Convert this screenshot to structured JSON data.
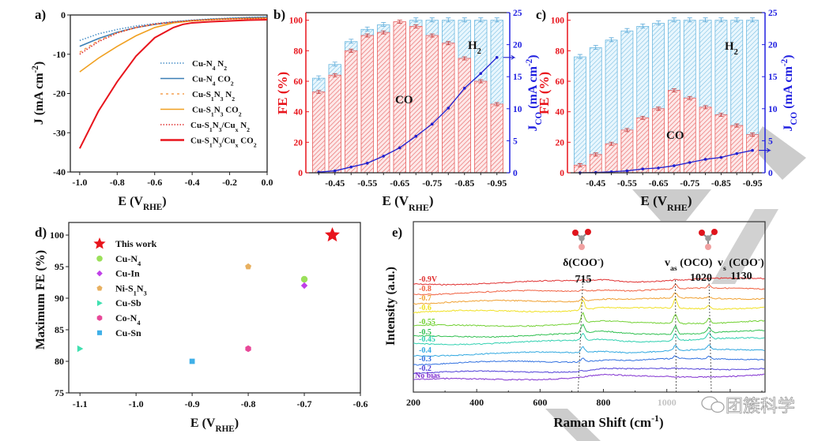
{
  "watermark": {
    "text": "团簇科学"
  },
  "chart_data": [
    {
      "panel": "a)",
      "type": "line",
      "xlabel": "E (V",
      "xlabel_sub": "RHE",
      "xlabel_end": ")",
      "ylabel": "J (mA cm",
      "ylabel_sup": "-2",
      "ylabel_end": ")",
      "xlim": [
        -1.05,
        0.0
      ],
      "ylim": [
        -40,
        0
      ],
      "xticks": [
        "-1.0",
        "-0.8",
        "-0.6",
        "-0.4",
        "-0.2",
        "0.0"
      ],
      "xtick_values": [
        -1.0,
        -0.8,
        -0.6,
        -0.4,
        -0.2,
        0.0
      ],
      "yticks": [
        "0",
        "-10",
        "-20",
        "-30",
        "-40"
      ],
      "ytick_values": [
        0,
        -10,
        -20,
        -30,
        -40
      ],
      "legend_position": "center-right",
      "series": [
        {
          "name": "Cu-N4 N2",
          "label": "Cu-N₄ N₂",
          "color": "#4a90c8",
          "dash": "dot",
          "x": [
            -1.0,
            -0.9,
            -0.8,
            -0.7,
            -0.6,
            -0.5,
            -0.4,
            -0.3,
            -0.2,
            -0.1,
            0.0
          ],
          "y": [
            -6.5,
            -4.8,
            -3.7,
            -2.8,
            -2.2,
            -1.7,
            -1.3,
            -1.0,
            -0.8,
            -0.6,
            -0.5
          ]
        },
        {
          "name": "Cu-N4 CO2",
          "label": "Cu-N₄ CO₂",
          "color": "#3b7fb5",
          "dash": "solid",
          "x": [
            -1.0,
            -0.9,
            -0.8,
            -0.7,
            -0.6,
            -0.5,
            -0.4,
            -0.3,
            -0.2,
            -0.1,
            0.0
          ],
          "y": [
            -8.0,
            -6.0,
            -4.4,
            -3.2,
            -2.4,
            -1.8,
            -1.4,
            -1.1,
            -0.9,
            -0.7,
            -0.6
          ]
        },
        {
          "name": "Cu-S1N3 N2",
          "label": "Cu-S₁N₃ N₂",
          "color": "#f5a050",
          "dash": "dash",
          "x": [
            -1.0,
            -0.9,
            -0.8,
            -0.7,
            -0.6,
            -0.5,
            -0.4,
            -0.3,
            -0.2,
            -0.1,
            0.0
          ],
          "y": [
            -9.5,
            -6.5,
            -4.5,
            -3.2,
            -2.4,
            -1.9,
            -1.5,
            -1.2,
            -1.0,
            -0.9,
            -0.8
          ]
        },
        {
          "name": "Cu-S1N3 CO2",
          "label": "Cu-S₁N₃ CO₂",
          "color": "#f0a020",
          "dash": "solid",
          "x": [
            -1.0,
            -0.9,
            -0.8,
            -0.7,
            -0.6,
            -0.5,
            -0.4,
            -0.3,
            -0.2,
            -0.1,
            0.0
          ],
          "y": [
            -14.5,
            -11.0,
            -8.0,
            -5.3,
            -3.2,
            -2.0,
            -1.5,
            -1.2,
            -1.0,
            -0.9,
            -0.8
          ]
        },
        {
          "name": "Cu-S1N3/Cux N2",
          "label": "Cu-S₁N₃/Cuₓ N₂",
          "color": "#e03030",
          "dash": "dot",
          "x": [
            -1.0,
            -0.9,
            -0.8,
            -0.7,
            -0.6,
            -0.5,
            -0.4,
            -0.3,
            -0.2,
            -0.1,
            0.0
          ],
          "y": [
            -10.0,
            -6.8,
            -4.6,
            -3.2,
            -2.3,
            -1.8,
            -1.4,
            -1.2,
            -1.0,
            -0.9,
            -0.8
          ]
        },
        {
          "name": "Cu-S1N3/Cux CO2",
          "label": "Cu-S₁N₃/Cuₓ CO₂",
          "color": "#e8141c",
          "dash": "solid",
          "x": [
            -1.0,
            -0.9,
            -0.8,
            -0.7,
            -0.6,
            -0.5,
            -0.45,
            -0.4,
            -0.3,
            -0.2,
            -0.1,
            0.0
          ],
          "y": [
            -34.0,
            -24.5,
            -17.0,
            -10.5,
            -5.8,
            -3.2,
            -2.4,
            -2.0,
            -1.7,
            -1.5,
            -1.3,
            -1.2
          ]
        }
      ]
    },
    {
      "panel": "b)",
      "type": "bar",
      "categories": [
        -0.4,
        -0.45,
        -0.5,
        -0.55,
        -0.6,
        -0.65,
        -0.7,
        -0.75,
        -0.8,
        -0.85,
        -0.9,
        -0.95
      ],
      "xticks": [
        "-0.45",
        "-0.55",
        "-0.65",
        "-0.75",
        "-0.85",
        "-0.95"
      ],
      "xlabel": "E (V",
      "xlabel_sub": "RHE",
      "xlabel_end": ")",
      "ylabel": "FE (%)",
      "ylabel_right": "J",
      "ylabel_right_sub": "CO",
      "ylabel_right_rest": " (mA cm",
      "ylabel_right_sup": "-2",
      "ylabel_right_end": ")",
      "ylim": [
        0,
        105
      ],
      "ylim_right": [
        0,
        25
      ],
      "yticks": [
        "0",
        "20",
        "40",
        "60",
        "80",
        "100"
      ],
      "ytick_values": [
        0,
        20,
        40,
        60,
        80,
        100
      ],
      "yticks_right": [
        "0",
        "5",
        "10",
        "15",
        "20",
        "25"
      ],
      "ytick_right_values": [
        0,
        5,
        10,
        15,
        20,
        25
      ],
      "annotations": {
        "co": "CO",
        "h2": "H",
        "h2_sub": "2"
      },
      "series": [
        {
          "name": "CO",
          "color": "#f08080",
          "values": [
            53,
            64,
            80,
            90,
            92,
            99,
            96,
            90,
            85,
            75,
            60,
            45
          ]
        },
        {
          "name": "H2",
          "color": "#7ec8ea",
          "values": [
            9,
            7,
            6,
            4,
            5,
            0,
            4,
            10,
            15,
            25,
            40,
            55
          ]
        },
        {
          "name": "J_CO",
          "color": "#2020d0",
          "axis": "right",
          "values": [
            0.1,
            0.3,
            0.9,
            1.5,
            2.6,
            3.9,
            5.7,
            7.6,
            10.1,
            13.2,
            15.5,
            18.0
          ]
        }
      ]
    },
    {
      "panel": "c)",
      "type": "bar",
      "categories": [
        -0.4,
        -0.45,
        -0.5,
        -0.55,
        -0.6,
        -0.65,
        -0.7,
        -0.75,
        -0.8,
        -0.85,
        -0.9,
        -0.95
      ],
      "xticks": [
        "-0.45",
        "-0.55",
        "-0.65",
        "-0.75",
        "-0.85",
        "-0.95"
      ],
      "xlabel": "E (V",
      "xlabel_sub": "RHE",
      "xlabel_end": ")",
      "ylabel": "FE (%)",
      "ylabel_right": "J",
      "ylabel_right_sub": "CO",
      "ylabel_right_rest": " (mA cm",
      "ylabel_right_sup": "-2",
      "ylabel_right_end": ")",
      "ylim": [
        0,
        105
      ],
      "ylim_right": [
        0,
        25
      ],
      "yticks": [
        "0",
        "20",
        "40",
        "60",
        "80",
        "100"
      ],
      "ytick_values": [
        0,
        20,
        40,
        60,
        80,
        100
      ],
      "yticks_right": [
        "0",
        "5",
        "10",
        "15",
        "20",
        "25"
      ],
      "ytick_right_values": [
        0,
        5,
        10,
        15,
        20,
        25
      ],
      "annotations": {
        "co": "CO",
        "h2": "H",
        "h2_sub": "2"
      },
      "series": [
        {
          "name": "CO",
          "color": "#f08080",
          "values": [
            5,
            12,
            19,
            28,
            36,
            42,
            54,
            49,
            43,
            38,
            31,
            25
          ]
        },
        {
          "name": "H2",
          "color": "#7ec8ea",
          "values": [
            71,
            70,
            68,
            65,
            60,
            56,
            46,
            51,
            57,
            62,
            69,
            75
          ]
        },
        {
          "name": "J_CO",
          "color": "#2020d0",
          "axis": "right",
          "values": [
            0.0,
            0.05,
            0.15,
            0.3,
            0.6,
            0.75,
            1.1,
            1.6,
            2.1,
            2.4,
            3.0,
            3.5
          ]
        }
      ]
    },
    {
      "panel": "d)",
      "type": "scatter",
      "xlabel": "E (V",
      "xlabel_sub": "RHE",
      "xlabel_end": ")",
      "ylabel": "Maximum FE (%)",
      "xlim": [
        -1.12,
        -0.6
      ],
      "ylim": [
        75,
        102
      ],
      "xticks": [
        "-1.1",
        "-1.0",
        "-0.9",
        "-0.8",
        "-0.7",
        "-0.6"
      ],
      "xtick_values": [
        -1.1,
        -1.0,
        -0.9,
        -0.8,
        -0.7,
        -0.6
      ],
      "yticks": [
        "75",
        "80",
        "85",
        "90",
        "95",
        "100"
      ],
      "ytick_values": [
        75,
        80,
        85,
        90,
        95,
        100
      ],
      "legend_position": "top-left",
      "series": [
        {
          "name": "This work",
          "marker": "star",
          "color": "#e8141c",
          "x": -0.65,
          "y": 100
        },
        {
          "name": "Cu-N4",
          "label": "Cu-N₄",
          "marker": "circle",
          "color": "#9be05a",
          "x": -0.7,
          "y": 93
        },
        {
          "name": "Cu-In",
          "marker": "diamond",
          "color": "#c040e8",
          "x": -0.7,
          "y": 92
        },
        {
          "name": "Ni-S1N3",
          "label": "Ni-S₁N₃",
          "marker": "pentagon",
          "color": "#e8b060",
          "x": -0.8,
          "y": 95
        },
        {
          "name": "Cu-Sb",
          "marker": "triangle-right",
          "color": "#40e0b0",
          "x": -1.1,
          "y": 82
        },
        {
          "name": "Co-N4",
          "label": "Co-N₄",
          "marker": "hexagon",
          "color": "#e84898",
          "x": -0.8,
          "y": 82
        },
        {
          "name": "Cu-Sn",
          "marker": "square",
          "color": "#40b0e8",
          "x": -0.9,
          "y": 80
        }
      ]
    },
    {
      "panel": "e)",
      "type": "line",
      "xlabel": "Raman Shift (cm",
      "xlabel_sup": "-1",
      "xlabel_end": ")",
      "ylabel": "Intensity (a.u.)",
      "xlim": [
        200,
        1310
      ],
      "xticks": [
        "200",
        "400",
        "600",
        "800",
        "1000"
      ],
      "xtick_values": [
        200,
        400,
        600,
        800,
        1000
      ],
      "peaks": [
        {
          "position": 715,
          "label": "δ(COO",
          "label_sup": "-",
          "label_end": ")",
          "value": "715"
        },
        {
          "position": 1020,
          "label": "v",
          "label_sub": "as",
          "label_end": " (OCO)",
          "value": "1020"
        },
        {
          "position": 1130,
          "label": "v",
          "label_sub": "s",
          "label_end": " (COO",
          "label_sup": "-",
          "label_end2": ")",
          "value": "1130"
        }
      ],
      "series": [
        {
          "name": "-0.9V",
          "color": "#e03030",
          "peak_strength": [
            0.2,
            0.3,
            0.2
          ]
        },
        {
          "name": "-0.8",
          "color": "#f06040",
          "peak_strength": [
            0.6,
            1.8,
            1.2
          ]
        },
        {
          "name": "-0.7",
          "color": "#f0a030",
          "peak_strength": [
            1.5,
            2.2,
            0.5
          ]
        },
        {
          "name": "-0.6",
          "color": "#f0e020",
          "peak_strength": [
            4.0,
            4.0,
            1.4
          ]
        },
        {
          "name": "-0.55",
          "color": "#70d030",
          "peak_strength": [
            4.2,
            3.8,
            2.0
          ]
        },
        {
          "name": "-0.5",
          "color": "#30c050",
          "peak_strength": [
            3.5,
            3.5,
            2.2
          ]
        },
        {
          "name": "-0.45",
          "color": "#30d0b0",
          "peak_strength": [
            3.0,
            3.0,
            2.6
          ]
        },
        {
          "name": "-0.4",
          "color": "#30a8e0",
          "peak_strength": [
            2.5,
            2.2,
            2.0
          ]
        },
        {
          "name": "-0.3",
          "color": "#3070e0",
          "peak_strength": [
            1.4,
            1.2,
            1.0
          ]
        },
        {
          "name": "-0.2",
          "color": "#5040d8",
          "peak_strength": [
            0.2,
            0.2,
            0.2
          ]
        },
        {
          "name": "No bias",
          "color": "#8030d0",
          "peak_strength": [
            0,
            0,
            0
          ]
        }
      ]
    }
  ]
}
